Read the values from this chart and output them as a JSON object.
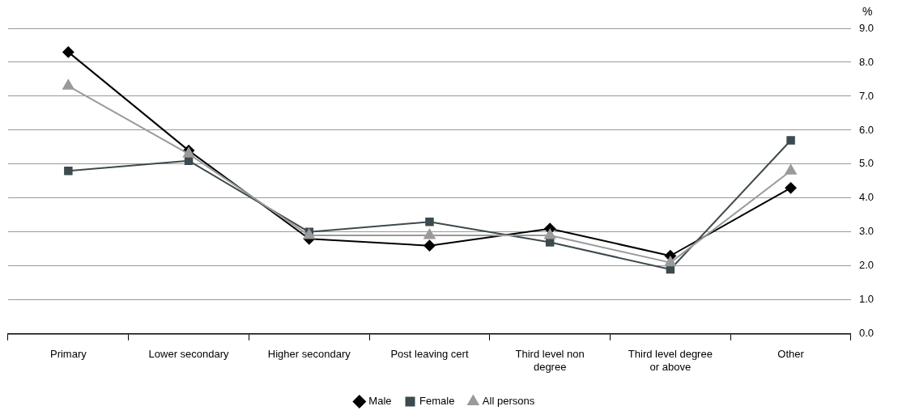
{
  "chart_data": {
    "type": "line",
    "ylabel": "%",
    "categories": [
      "Primary",
      "Lower secondary",
      "Higher secondary",
      "Post leaving cert",
      "Third level non degree",
      "Third level degree or above",
      "Other"
    ],
    "series": [
      {
        "name": "Male",
        "color": "#000000",
        "marker": "diamond",
        "values": [
          8.3,
          5.4,
          2.8,
          2.6,
          3.1,
          2.3,
          4.3
        ]
      },
      {
        "name": "Female",
        "color": "#3d4a4f",
        "marker": "square",
        "values": [
          4.8,
          5.1,
          3.0,
          3.3,
          2.7,
          1.9,
          5.7
        ]
      },
      {
        "name": "All persons",
        "color": "#9a9a9a",
        "marker": "triangle",
        "values": [
          7.3,
          5.3,
          2.9,
          2.9,
          2.9,
          2.1,
          4.8
        ]
      }
    ],
    "ylim": [
      0,
      9
    ],
    "yticks": [
      {
        "value": 0,
        "label": "0.0"
      },
      {
        "value": 1,
        "label": "1.0"
      },
      {
        "value": 2,
        "label": "2.0"
      },
      {
        "value": 3,
        "label": "3.0"
      },
      {
        "value": 4,
        "label": "4.0"
      },
      {
        "value": 5,
        "label": "5.0"
      },
      {
        "value": 6,
        "label": "6.0"
      },
      {
        "value": 7,
        "label": "7.0"
      },
      {
        "value": 8,
        "label": "8.0"
      },
      {
        "value": 9,
        "label": "9.0"
      }
    ],
    "grid": "y",
    "legend": "bottom",
    "line_style": "solid"
  }
}
